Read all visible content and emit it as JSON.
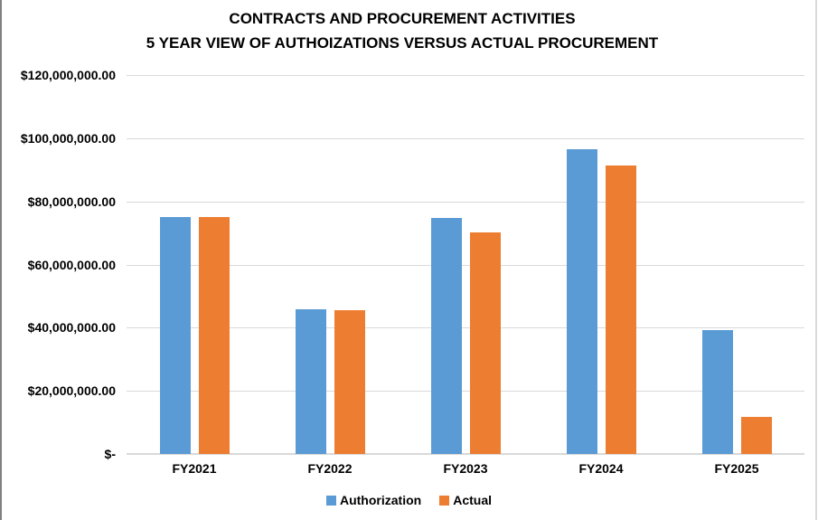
{
  "colors": {
    "series_authorization": "#5B9BD5",
    "series_actual": "#ED7D31",
    "gridline": "#D9D9D9",
    "text": "#000000",
    "left_edge_line": "#808080",
    "right_edge_line": "#D9D9D9",
    "background": "#FFFFFF"
  },
  "chart_data": {
    "type": "bar",
    "title": "CONTRACTS AND PROCUREMENT ACTIVITIES",
    "subtitle": "5 YEAR VIEW OF AUTHOIZATIONS VERSUS ACTUAL PROCUREMENT",
    "categories": [
      "FY2021",
      "FY2022",
      "FY2023",
      "FY2024",
      "FY2025"
    ],
    "series": [
      {
        "name": "Authorization",
        "color": "#5B9BD5",
        "values": [
          75000000,
          45800000,
          74800000,
          96500000,
          39300000
        ]
      },
      {
        "name": "Actual",
        "color": "#ED7D31",
        "values": [
          75000000,
          45500000,
          70200000,
          91400000,
          11700000
        ]
      }
    ],
    "xlabel": "",
    "ylabel": "",
    "ylim": [
      0,
      120000000
    ],
    "y_tick_interval": 20000000,
    "y_tick_labels_bottom_to_top": [
      "$-",
      "$20,000,000.00",
      "$40,000,000.00",
      "$60,000,000.00",
      "$80,000,000.00",
      "$100,000,000.00",
      "$120,000,000.00"
    ],
    "grid": true,
    "legend_position": "bottom",
    "legend_entries": [
      "Authorization",
      "Actual"
    ]
  }
}
